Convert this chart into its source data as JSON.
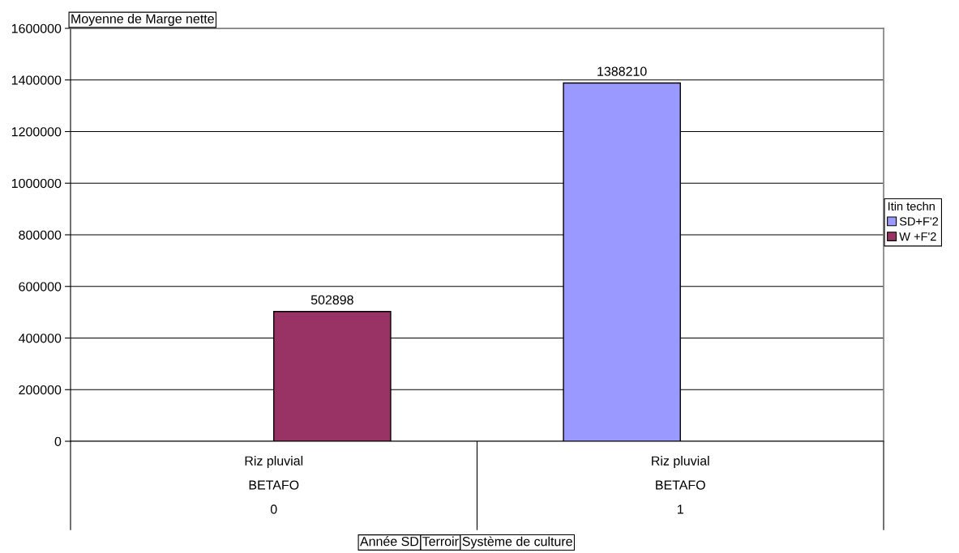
{
  "chart_data": {
    "type": "bar",
    "title": "Moyenne de Marge nette",
    "categories": [
      "Riz pluvial\nBETAFO\n0",
      "Riz pluvial\nBETAFO\n1"
    ],
    "series": [
      {
        "name": "SD+F'2",
        "color": "#9999ff",
        "values": [
          null,
          1388210
        ]
      },
      {
        "name": "W +F'2",
        "color": "#993366",
        "values": [
          502898,
          null
        ]
      }
    ],
    "ylim": [
      0,
      1600000
    ],
    "yticks": [
      0,
      200000,
      400000,
      600000,
      800000,
      1000000,
      1200000,
      1400000,
      1600000
    ],
    "grid": "y",
    "legend": "right",
    "legend_title": "Itin techn",
    "data_labels": true,
    "annotations": [
      "Année SD",
      "Terroir",
      "Système de culture"
    ]
  }
}
